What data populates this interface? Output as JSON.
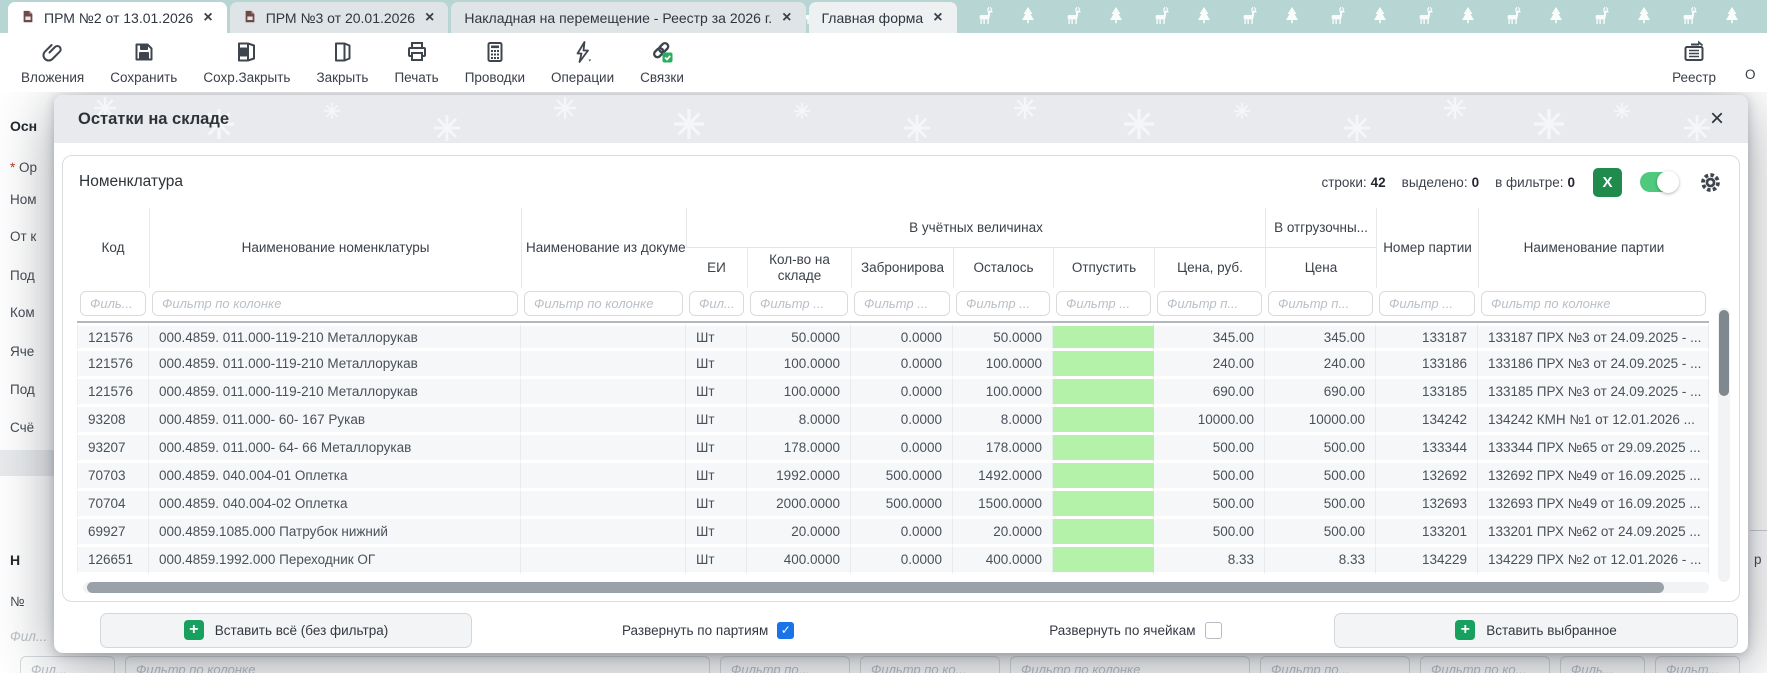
{
  "glyphs": {
    "close": "×",
    "excel": "X",
    "plus": "+",
    "check": "✓"
  },
  "colors": {
    "tabbar_teal": "#b7d5d3",
    "excel_green": "#1f8b4d",
    "toggle_green": "#4fc97e",
    "cell_green": "#b4f1a9",
    "checkbox_blue": "#1a73e8",
    "plus_green": "#17a05e"
  },
  "tab_bar": {
    "tabs": [
      {
        "label": "ПРМ №2 от 13.01.2026",
        "has_icon": true,
        "active": true
      },
      {
        "label": "ПРМ №3 от 20.01.2026",
        "has_icon": true,
        "active": false
      },
      {
        "label": "Накладная на перемещение - Реестр за 2026 г.",
        "has_icon": false,
        "active": false
      },
      {
        "label": "Главная форма",
        "has_icon": false,
        "active": false
      }
    ]
  },
  "toolbar": {
    "buttons": [
      {
        "icon": "paperclip-icon",
        "label": "Вложения"
      },
      {
        "icon": "save-icon",
        "label": "Сохранить"
      },
      {
        "icon": "save-close-icon",
        "label": "Сохр.Закрыть"
      },
      {
        "icon": "door-icon",
        "label": "Закрыть"
      },
      {
        "icon": "printer-icon",
        "label": "Печать"
      },
      {
        "icon": "calculator-icon",
        "label": "Проводки"
      },
      {
        "icon": "lightning-icon",
        "label": "Операции"
      },
      {
        "icon": "links-icon",
        "label": "Связки"
      }
    ],
    "right_buttons": [
      {
        "icon": "registry-icon",
        "label": "Реестр"
      },
      {
        "icon": null,
        "label": "О"
      }
    ]
  },
  "background_form": {
    "left_items": [
      "Осн",
      "* Ор",
      "Ном",
      "От к",
      "Под",
      "Ком",
      "Яче",
      "Под",
      "Счё",
      "Н",
      "№",
      "Фил..."
    ],
    "bottom_filters": [
      "Фил...",
      "Фильтр по колонке",
      "Фильтр по...",
      "Фильтр по ко...",
      "Фильтр по колонке",
      "Фильтр по...",
      "Фильтр по ко...",
      "Филь...",
      "Фильт..."
    ],
    "right_clipped": "р"
  },
  "modal": {
    "title": "Остатки на складе",
    "panel": {
      "title": "Номенклатура",
      "stats": [
        {
          "label": "строки:",
          "value": "42"
        },
        {
          "label": "выделено:",
          "value": "0"
        },
        {
          "label": "в фильтре:",
          "value": "0"
        }
      ]
    },
    "table": {
      "groups": [
        {
          "label": "В учётных величинах"
        },
        {
          "label": "В отгрузочны..."
        }
      ],
      "columns": [
        {
          "label": "Код",
          "filter": "Филь..."
        },
        {
          "label": "Наименование номенклатуры",
          "filter": "Фильтр по колонке"
        },
        {
          "label": "Наименование из документа поставщика",
          "filter": "Фильтр по колонке"
        },
        {
          "label": "ЕИ",
          "filter": "Фил..."
        },
        {
          "label": "Кол-во на складе",
          "filter": "Фильтр ..."
        },
        {
          "label": "Забронирова",
          "filter": "Фильтр ..."
        },
        {
          "label": "Осталось",
          "filter": "Фильтр ..."
        },
        {
          "label": "Отпустить",
          "filter": "Фильтр ..."
        },
        {
          "label": "Цена, руб.",
          "filter": "Фильтр п..."
        },
        {
          "label": "Цена",
          "filter": "Фильтр п..."
        },
        {
          "label": "Номер партии",
          "filter": "Фильтр ..."
        },
        {
          "label": "Наименование партии",
          "filter": "Фильтр по колонке"
        }
      ],
      "rows": [
        [
          "121576",
          "000.4859. 011.000-119-210 Металлорукав",
          "",
          "Шт",
          "50.0000",
          "0.0000",
          "50.0000",
          "",
          "345.00",
          "345.00",
          "133187",
          "133187 ПРХ №3 от 24.09.2025 - ..."
        ],
        [
          "121576",
          "000.4859. 011.000-119-210 Металлорукав",
          "",
          "Шт",
          "100.0000",
          "0.0000",
          "100.0000",
          "",
          "240.00",
          "240.00",
          "133186",
          "133186 ПРХ №3 от 24.09.2025 - ..."
        ],
        [
          "121576",
          "000.4859. 011.000-119-210 Металлорукав",
          "",
          "Шт",
          "100.0000",
          "0.0000",
          "100.0000",
          "",
          "690.00",
          "690.00",
          "133185",
          "133185 ПРХ №3 от 24.09.2025 - ..."
        ],
        [
          "93208",
          "000.4859. 011.000- 60- 167 Рукав",
          "",
          "Шт",
          "8.0000",
          "0.0000",
          "8.0000",
          "",
          "10000.00",
          "10000.00",
          "134242",
          "134242 КМН №1 от 12.01.2026 ..."
        ],
        [
          "93207",
          "000.4859. 011.000- 64- 66 Металлорукав",
          "",
          "Шт",
          "178.0000",
          "0.0000",
          "178.0000",
          "",
          "500.00",
          "500.00",
          "133344",
          "133344 ПРХ №65 от 29.09.2025 ..."
        ],
        [
          "70703",
          "000.4859. 040.004-01 Оплетка",
          "",
          "Шт",
          "1992.0000",
          "500.0000",
          "1492.0000",
          "",
          "500.00",
          "500.00",
          "132692",
          "132692 ПРХ №49 от 16.09.2025 ..."
        ],
        [
          "70704",
          "000.4859. 040.004-02 Оплетка",
          "",
          "Шт",
          "2000.0000",
          "500.0000",
          "1500.0000",
          "",
          "500.00",
          "500.00",
          "132693",
          "132693 ПРХ №49 от 16.09.2025 ..."
        ],
        [
          "69927",
          "000.4859.1085.000 Патрубок нижний",
          "",
          "Шт",
          "20.0000",
          "0.0000",
          "20.0000",
          "",
          "500.00",
          "500.00",
          "133201",
          "133201 ПРХ №62 от 24.09.2025 ..."
        ],
        [
          "126651",
          "000.4859.1992.000 Переходник ОГ",
          "",
          "Шт",
          "400.0000",
          "0.0000",
          "400.0000",
          "",
          "8.33",
          "8.33",
          "134229",
          "134229 ПРХ №2 от 12.01.2026 - ..."
        ]
      ]
    },
    "footer": {
      "insert_all": "Вставить всё (без фильтра)",
      "expand_batches": {
        "label": "Развернуть по партиям",
        "checked": true
      },
      "expand_cells": {
        "label": "Развернуть по ячейкам",
        "checked": false
      },
      "insert_selected": "Вставить выбранное"
    }
  }
}
